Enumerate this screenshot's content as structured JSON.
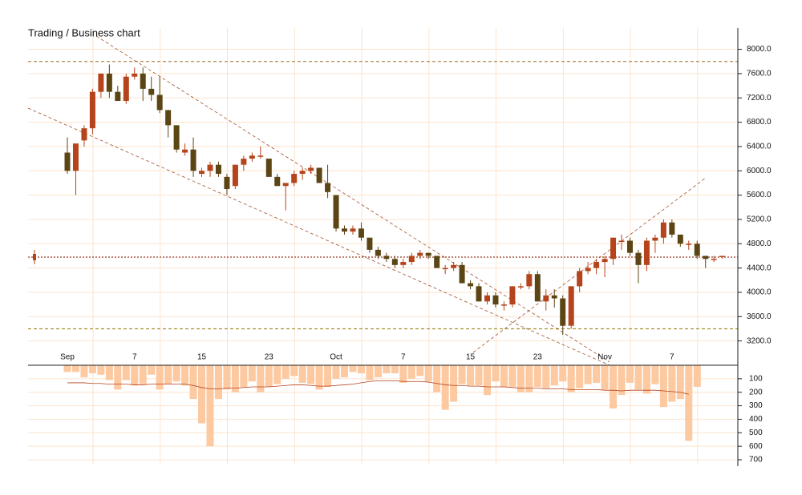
{
  "chart_data": {
    "type": "candlestick",
    "title": "Trading / Business chart",
    "categories": [
      "Sep",
      null,
      null,
      null,
      null,
      null,
      null,
      null,
      "7",
      null,
      null,
      null,
      null,
      null,
      null,
      null,
      "15",
      null,
      null,
      null,
      null,
      null,
      null,
      null,
      "23",
      null,
      null,
      null,
      null,
      null,
      null,
      null,
      "Oct",
      null,
      null,
      null,
      null,
      null,
      null,
      null,
      "7",
      null,
      null,
      null,
      null,
      null,
      null,
      null,
      "15",
      null,
      null,
      null,
      null,
      null,
      null,
      null,
      "23",
      null,
      null,
      null,
      null,
      null,
      null,
      null,
      "Nov",
      null,
      null,
      null,
      null,
      null,
      null,
      null,
      "7",
      null,
      null,
      null,
      null,
      null,
      null
    ],
    "open": [
      6300,
      6000,
      6500,
      6700,
      7300,
      7600,
      7300,
      7150,
      7550,
      7600,
      7350,
      7250,
      7000,
      6750,
      6300,
      6350,
      5950,
      6000,
      6100,
      5900,
      5750,
      6100,
      6200,
      6250,
      6200,
      5900,
      5750,
      5800,
      5950,
      6000,
      6050,
      5800,
      5600,
      5050,
      5000,
      5050,
      4900,
      4700,
      4600,
      4550,
      4450,
      4500,
      4600,
      4650,
      4600,
      4400,
      4400,
      4450,
      4150,
      4100,
      3850,
      3950,
      3800,
      3800,
      4100,
      4100,
      4300,
      3850,
      3950,
      3900,
      3450,
      4100,
      4350,
      4400,
      4500,
      4550,
      4850,
      4850,
      4650,
      4450,
      4850,
      4900,
      5150,
      4950,
      4800,
      4800,
      4600,
      4550,
      4600
    ],
    "high": [
      6550,
      6400,
      6750,
      7350,
      7600,
      7750,
      7400,
      7600,
      7700,
      7700,
      7550,
      7550,
      7000,
      6750,
      6450,
      6550,
      6050,
      6150,
      6150,
      5950,
      6100,
      6250,
      6300,
      6400,
      6200,
      5950,
      5800,
      6000,
      6050,
      6100,
      6050,
      6100,
      5600,
      5100,
      5100,
      5150,
      4900,
      4750,
      4650,
      4600,
      4550,
      4650,
      4700,
      4650,
      4600,
      4450,
      4500,
      4500,
      4200,
      4150,
      4000,
      4000,
      3850,
      4100,
      4150,
      4350,
      4350,
      4050,
      4050,
      3950,
      4100,
      4400,
      4500,
      4550,
      4600,
      4900,
      4950,
      4900,
      4700,
      4900,
      4950,
      5200,
      5200,
      4950,
      4850,
      4850,
      4600,
      4600,
      4600
    ],
    "low": [
      5950,
      5600,
      6400,
      6600,
      7200,
      7200,
      7150,
      7100,
      7500,
      7150,
      7150,
      6950,
      6550,
      6300,
      6250,
      5900,
      5900,
      5900,
      5900,
      5600,
      5700,
      6000,
      6150,
      6200,
      5900,
      5750,
      5350,
      5750,
      5850,
      5950,
      5800,
      5550,
      5000,
      4950,
      4950,
      4850,
      4650,
      4550,
      4500,
      4400,
      4400,
      4450,
      4550,
      4550,
      4400,
      4300,
      4350,
      4150,
      4050,
      3850,
      3800,
      3750,
      3700,
      3750,
      4050,
      4050,
      3850,
      3700,
      3750,
      3300,
      3400,
      4000,
      4300,
      4300,
      4250,
      4450,
      4700,
      4600,
      4150,
      4350,
      4650,
      4800,
      4900,
      4750,
      4700,
      4550,
      4400,
      4500,
      4550
    ],
    "close": [
      6000,
      6450,
      6700,
      7300,
      7600,
      7300,
      7150,
      7550,
      7600,
      7350,
      7250,
      7000,
      6750,
      6350,
      6350,
      6000,
      6000,
      6100,
      5950,
      5700,
      6100,
      6200,
      6250,
      6250,
      5900,
      5750,
      5800,
      5950,
      6000,
      6050,
      5800,
      5650,
      5050,
      5000,
      5050,
      4900,
      4700,
      4600,
      4550,
      4450,
      4500,
      4600,
      4650,
      4600,
      4400,
      4400,
      4450,
      4150,
      4100,
      3850,
      3950,
      3800,
      3800,
      4100,
      4100,
      4300,
      3850,
      3950,
      3900,
      3450,
      4100,
      4350,
      4400,
      4500,
      4550,
      4900,
      4850,
      4650,
      4450,
      4850,
      4900,
      5150,
      4950,
      4800,
      4800,
      4600,
      4550,
      4550,
      4600
    ],
    "volume": [
      50,
      50,
      90,
      60,
      70,
      110,
      180,
      110,
      150,
      140,
      70,
      180,
      140,
      120,
      150,
      250,
      430,
      600,
      250,
      180,
      200,
      160,
      120,
      200,
      160,
      140,
      100,
      80,
      130,
      140,
      180,
      160,
      100,
      90,
      50,
      60,
      110,
      90,
      60,
      60,
      130,
      100,
      80,
      120,
      200,
      330,
      270,
      140,
      150,
      150,
      220,
      120,
      160,
      160,
      200,
      200,
      160,
      170,
      150,
      120,
      200,
      170,
      140,
      130,
      180,
      320,
      220,
      130,
      180,
      210,
      140,
      310,
      270,
      250,
      560,
      160,
      null,
      null,
      null
    ],
    "volume_ma": [
      130,
      130,
      130,
      135,
      135,
      140,
      140,
      140,
      145,
      145,
      140,
      140,
      140,
      140,
      140,
      150,
      165,
      175,
      175,
      170,
      170,
      165,
      160,
      160,
      160,
      155,
      150,
      145,
      145,
      150,
      155,
      155,
      150,
      145,
      140,
      130,
      120,
      115,
      115,
      115,
      120,
      120,
      120,
      125,
      135,
      145,
      150,
      150,
      155,
      155,
      160,
      160,
      160,
      165,
      170,
      170,
      170,
      175,
      175,
      175,
      180,
      180,
      180,
      180,
      185,
      185,
      190,
      185,
      185,
      185,
      185,
      190,
      195,
      200,
      215,
      null,
      null,
      null,
      null
    ],
    "up_color": "#b5441c",
    "down_color": "#5c4514",
    "volume_color": "#fcc9a0",
    "ma_color": "#b5441c",
    "ylim": [
      2800,
      8350
    ],
    "yticks": [
      {
        "value": 3200,
        "label": "3200.0"
      },
      {
        "value": 3600,
        "label": "3600.0"
      },
      {
        "value": 4000,
        "label": "4000.0"
      },
      {
        "value": 4400,
        "label": "4400.0"
      },
      {
        "value": 4800,
        "label": "4800.0"
      },
      {
        "value": 5200,
        "label": "5200.0"
      },
      {
        "value": 5600,
        "label": "5600.0"
      },
      {
        "value": 6000,
        "label": "6000.0"
      },
      {
        "value": 6400,
        "label": "6400.0"
      },
      {
        "value": 6800,
        "label": "6800.0"
      },
      {
        "value": 7200,
        "label": "7200.0"
      },
      {
        "value": 7600,
        "label": "7600.0"
      },
      {
        "value": 8000,
        "label": "8000.0"
      }
    ],
    "y2lim": [
      0,
      700
    ],
    "y2ticks": [
      100,
      200,
      300,
      400,
      500,
      600,
      700
    ],
    "reference_lines": [
      {
        "value": 7800,
        "color": "#b08850"
      },
      {
        "value": 3400,
        "color": "#a89030"
      },
      {
        "value": 4580,
        "color": "#9a3a20"
      }
    ],
    "grid": true
  }
}
